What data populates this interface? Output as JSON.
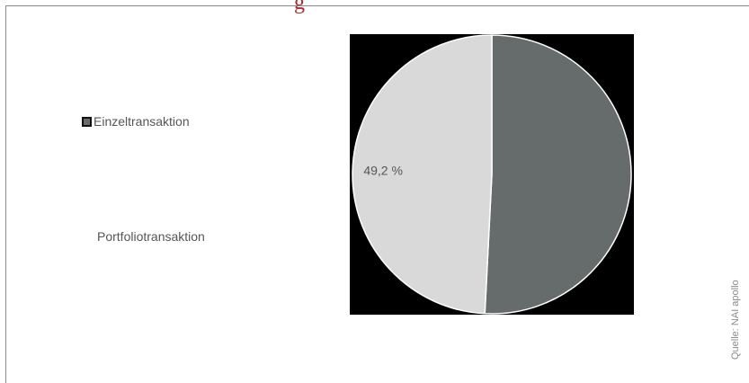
{
  "title": "g",
  "source": "Quelle: NAI apollo",
  "colors": {
    "frame": "#8a8a8a",
    "title": "#b0272c",
    "plot_background": "#000000",
    "slice_dark": "#666b6b",
    "slice_light": "#d9d9d9",
    "label": "#555555"
  },
  "legend": {
    "items": [
      {
        "label": "Einzeltransaktion"
      },
      {
        "label": "Portfoliotransaktion"
      }
    ]
  },
  "chart_data": {
    "type": "pie",
    "labels": [
      "Einzeltransaktion",
      "Portfoliotransaktion"
    ],
    "values": [
      50.8,
      49.2
    ],
    "data_labels": [
      "",
      "49,2 %"
    ],
    "colors": [
      "#666b6b",
      "#d9d9d9"
    ],
    "legend_position": "left"
  }
}
